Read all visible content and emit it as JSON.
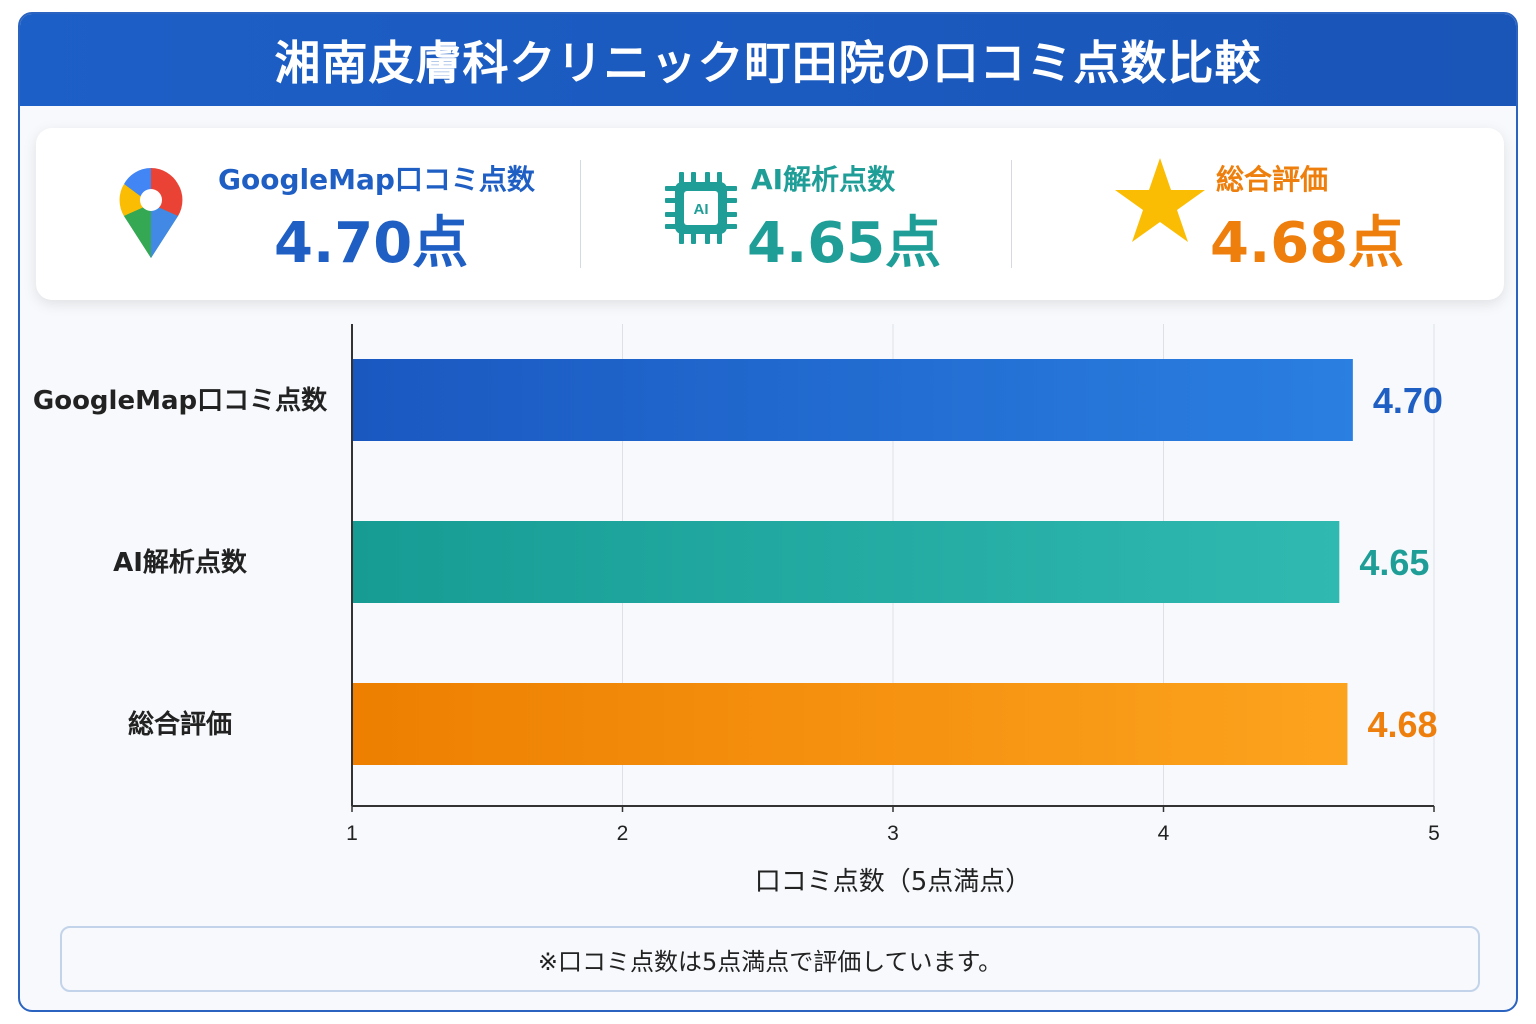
{
  "title": "湘南皮膚科クリニック町田院の口コミ点数比較",
  "summary": [
    {
      "label": "GoogleMap口コミ点数",
      "value": "4.70点",
      "color": "#1f5fc4",
      "icon": "map-pin-icon"
    },
    {
      "label": "AI解析点数",
      "value": "4.65点",
      "color": "#1f9e98",
      "icon": "ai-chip-icon"
    },
    {
      "label": "総合評価",
      "value": "4.68点",
      "color": "#ee7f0c",
      "icon": "star-icon"
    }
  ],
  "chart_data": {
    "type": "bar",
    "orientation": "horizontal",
    "categories": [
      "GoogleMap口コミ点数",
      "AI解析点数",
      "総合評価"
    ],
    "values": [
      4.7,
      4.65,
      4.68
    ],
    "value_labels": [
      "4.70",
      "4.65",
      "4.68"
    ],
    "colors": [
      "#1f5fc4",
      "#1f9e98",
      "#ee7f0c"
    ],
    "xlim": [
      1,
      5
    ],
    "xticks": [
      "1",
      "2",
      "3",
      "4",
      "5"
    ],
    "xlabel": "口コミ点数（5点満点）",
    "grid": true
  },
  "note": "※口コミ点数は5点満点で評価しています。"
}
